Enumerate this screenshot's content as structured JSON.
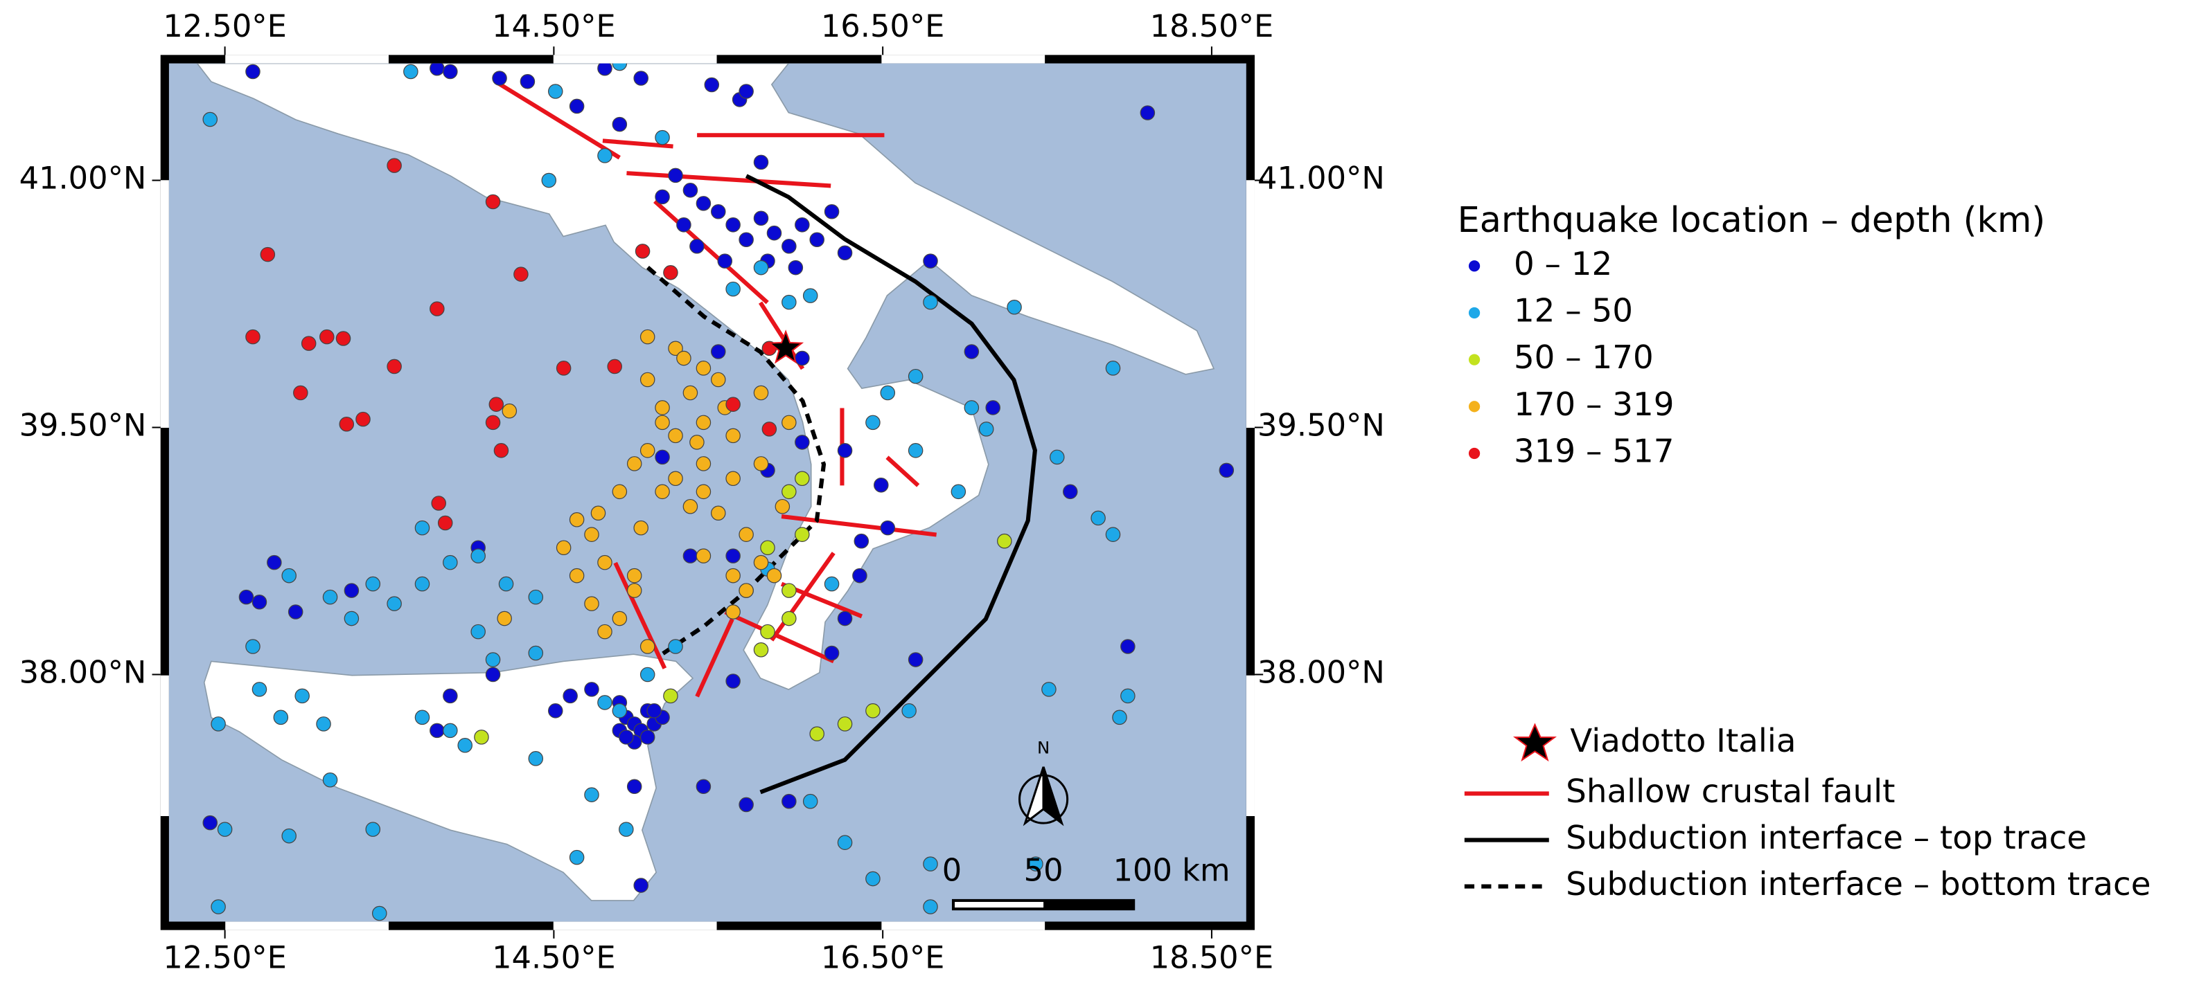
{
  "chart_data": {
    "type": "scatter",
    "xlim": [
      12.16,
      18.71
    ],
    "ylim": [
      36.5,
      41.71
    ],
    "xticks": [
      {
        "value": 12.5,
        "label": "12.50°E"
      },
      {
        "value": 14.5,
        "label": "14.50°E"
      },
      {
        "value": 16.5,
        "label": "16.50°E"
      },
      {
        "value": 18.5,
        "label": "18.50°E"
      }
    ],
    "yticks": [
      {
        "value": 38,
        "label": "38.00°N"
      },
      {
        "value": 39.5,
        "label": "39.50°N"
      },
      {
        "value": 41,
        "label": "41.00°N"
      }
    ],
    "legend_title": "Earthquake location – depth (km)",
    "series": [
      {
        "name": "0 – 12",
        "color": "#0a0ad2",
        "x": [
          12.67,
          13.79,
          13.87,
          14.17,
          14.34,
          14.81,
          15.03,
          15.46,
          15.63,
          15.67,
          14.64,
          14.9,
          15.24,
          15.33,
          15.41,
          15.5,
          15.59,
          15.67,
          15.76,
          15.84,
          15.93,
          16.01,
          16.1,
          15.16,
          15.29,
          15.37,
          15.54,
          15.8,
          15.97,
          15.76,
          16.19,
          16.27,
          16.79,
          17.04,
          17.17,
          17.64,
          18.11,
          18.59,
          17.99,
          15.16,
          15.33,
          15.5,
          16.01,
          16.01,
          15.8,
          16.27,
          16.49,
          16.53,
          16.37,
          16.7,
          15.59,
          15.41,
          15.67,
          15.93,
          15.03,
          14.9,
          14.94,
          14.99,
          15.03,
          15.07,
          15.11,
          14.9,
          14.99,
          15.07,
          15.16,
          14.6,
          14.51,
          14.73,
          13.87,
          13.79,
          12.63,
          12.71,
          12.8,
          12.93,
          13.27,
          14.04,
          14.13,
          16.27,
          16.19,
          16.36,
          15.59,
          12.41,
          14.99,
          15.11,
          14.94
        ],
        "y": [
          41.66,
          41.68,
          41.66,
          41.62,
          41.6,
          41.68,
          41.62,
          41.58,
          41.49,
          41.54,
          41.45,
          41.34,
          41.03,
          40.94,
          40.86,
          40.81,
          40.73,
          40.64,
          40.77,
          40.68,
          40.6,
          40.73,
          40.64,
          40.9,
          40.73,
          40.6,
          40.51,
          40.51,
          40.47,
          41.11,
          40.81,
          40.56,
          40.51,
          39.96,
          39.62,
          39.11,
          41.41,
          39.24,
          38.17,
          39.32,
          38.72,
          39.96,
          39.92,
          39.41,
          39.24,
          39.36,
          39.15,
          38.89,
          38.81,
          38.09,
          37.96,
          37.32,
          37.21,
          37.23,
          36.72,
          37.83,
          37.74,
          37.7,
          37.66,
          37.78,
          37.7,
          37.66,
          37.59,
          37.62,
          37.74,
          37.87,
          37.78,
          37.91,
          37.87,
          37.66,
          38.47,
          38.44,
          38.68,
          38.38,
          38.51,
          38.77,
          38.0,
          38.34,
          38.13,
          38.6,
          38.72,
          37.1,
          37.32,
          37.78,
          37.62
        ]
      },
      {
        "name": "12 – 50",
        "color": "#1ea8e8",
        "x": [
          12.41,
          13.63,
          14.9,
          15.16,
          14.81,
          14.47,
          14.51,
          15.93,
          16.06,
          15.59,
          16.79,
          17.3,
          16.53,
          16.7,
          17.04,
          17.13,
          16.7,
          16.44,
          16.96,
          17.56,
          17.81,
          17.9,
          17.9,
          17.99,
          17.94,
          17.51,
          12.89,
          13.14,
          13.4,
          13.53,
          13.7,
          13.87,
          14.04,
          14.21,
          14.39,
          13.7,
          14.04,
          14.13,
          13.27,
          12.67,
          12.71,
          12.97,
          12.84,
          13.1,
          12.46,
          13.14,
          12.5,
          12.89,
          13.4,
          13.96,
          14.39,
          14.64,
          14.73,
          14.94,
          15.07,
          15.24,
          14.81,
          14.39,
          16.06,
          16.27,
          16.44,
          16.79,
          16.66,
          17.43,
          16.79,
          12.46,
          13.44,
          13.7,
          13.87,
          14.9,
          15.76,
          15.8,
          16.19
        ],
        "y": [
          41.37,
          41.66,
          41.71,
          41.26,
          41.15,
          41.0,
          41.54,
          40.26,
          40.3,
          40.34,
          40.26,
          40.23,
          39.71,
          39.81,
          39.62,
          39.49,
          39.36,
          39.53,
          39.11,
          39.32,
          38.95,
          38.85,
          39.86,
          37.87,
          37.74,
          37.91,
          38.6,
          38.47,
          38.55,
          38.43,
          38.55,
          38.68,
          38.72,
          38.55,
          38.47,
          38.89,
          38.26,
          38.09,
          38.34,
          38.17,
          37.91,
          37.87,
          37.74,
          37.7,
          37.7,
          37.36,
          37.06,
          37.02,
          37.06,
          37.57,
          37.49,
          36.89,
          37.27,
          37.06,
          38.0,
          38.17,
          37.83,
          38.13,
          37.23,
          36.98,
          36.76,
          36.85,
          37.78,
          36.85,
          36.59,
          36.59,
          36.55,
          37.74,
          37.66,
          37.78,
          40.47,
          38.64,
          38.55
        ]
      },
      {
        "name": "50 – 170",
        "color": "#c3e21e",
        "x": [
          15.93,
          16.01,
          15.8,
          15.67,
          15.93,
          15.21,
          16.44,
          16.27,
          16.1,
          17.24,
          14.06,
          15.76,
          16.01,
          15.8,
          15.93
        ],
        "y": [
          39.11,
          38.85,
          38.77,
          38.51,
          38.51,
          37.87,
          37.78,
          37.7,
          37.64,
          38.81,
          37.62,
          38.15,
          39.19,
          38.26,
          38.34
        ]
      },
      {
        "name": "170 – 319",
        "color": "#f4b11c",
        "x": [
          15.07,
          15.24,
          15.41,
          15.5,
          15.33,
          15.16,
          15.41,
          15.59,
          15.24,
          15.07,
          15.41,
          15.59,
          15.76,
          15.24,
          15.16,
          15.41,
          15.33,
          15.5,
          15.67,
          15.76,
          15.59,
          15.41,
          15.16,
          15.07,
          14.99,
          14.9,
          14.64,
          14.73,
          14.56,
          14.81,
          14.64,
          14.73,
          14.99,
          14.9,
          15.07,
          14.81,
          14.99,
          15.84,
          15.67,
          15.93,
          15.76,
          15.89,
          14.23,
          14.2,
          15.59,
          15.29,
          15.54,
          15.37,
          15.03,
          14.77
        ],
        "y": [
          40.05,
          39.98,
          39.86,
          39.79,
          39.71,
          39.62,
          39.53,
          39.45,
          39.45,
          39.36,
          39.28,
          39.19,
          39.28,
          39.19,
          39.11,
          39.11,
          39.02,
          38.98,
          38.85,
          38.68,
          38.6,
          38.72,
          39.53,
          39.79,
          39.28,
          39.11,
          38.94,
          38.85,
          38.77,
          38.68,
          38.6,
          38.43,
          38.6,
          38.34,
          38.17,
          38.26,
          38.51,
          38.6,
          38.51,
          39.53,
          39.71,
          39.02,
          39.6,
          38.34,
          38.38,
          39.92,
          39.62,
          39.41,
          38.89,
          38.98
        ]
      },
      {
        "name": "319 – 517",
        "color": "#e8141c",
        "x": [
          13.53,
          14.13,
          12.76,
          14.3,
          13.79,
          12.67,
          13.01,
          13.12,
          13.22,
          12.96,
          13.24,
          13.34,
          13.53,
          14.15,
          14.13,
          14.18,
          13.8,
          13.84,
          14.56,
          14.87,
          15.04,
          15.59,
          15.81,
          15.81,
          15.21
        ],
        "y": [
          41.09,
          40.87,
          40.55,
          40.43,
          40.22,
          40.05,
          40.01,
          40.05,
          40.04,
          39.71,
          39.52,
          39.55,
          39.87,
          39.64,
          39.53,
          39.36,
          39.04,
          38.92,
          39.86,
          39.87,
          40.57,
          39.64,
          39.98,
          39.49,
          40.44
        ]
      }
    ],
    "landmark": {
      "name": "Viadotto Italia",
      "x": 15.91,
      "y": 39.98
    },
    "features": [
      "Shallow crustal fault",
      "Subduction interface – top trace",
      "Subduction interface – bottom trace"
    ],
    "scale_bar": [
      "0",
      "50",
      "100 km"
    ],
    "north": "N"
  }
}
